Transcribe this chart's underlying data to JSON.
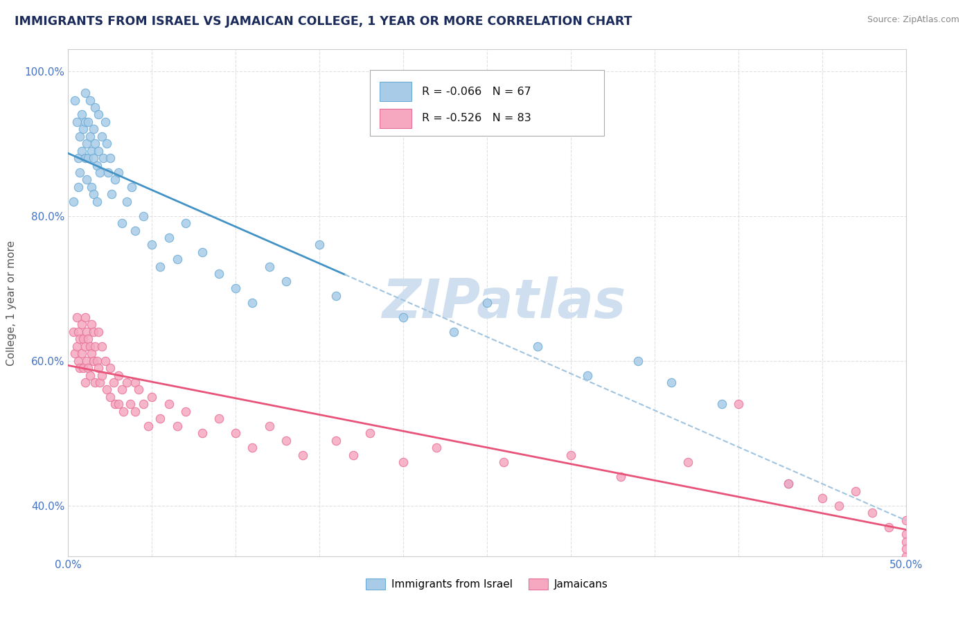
{
  "title": "IMMIGRANTS FROM ISRAEL VS JAMAICAN COLLEGE, 1 YEAR OR MORE CORRELATION CHART",
  "source_text": "Source: ZipAtlas.com",
  "ylabel": "College, 1 year or more",
  "xlim": [
    0.0,
    0.5
  ],
  "ylim": [
    0.33,
    1.03
  ],
  "xticks": [
    0.0,
    0.05,
    0.1,
    0.15,
    0.2,
    0.25,
    0.3,
    0.35,
    0.4,
    0.45,
    0.5
  ],
  "xticklabels": [
    "0.0%",
    "",
    "",
    "",
    "",
    "",
    "",
    "",
    "",
    "",
    "50.0%"
  ],
  "yticks": [
    0.4,
    0.6,
    0.8,
    1.0
  ],
  "yticklabels": [
    "40.0%",
    "60.0%",
    "80.0%",
    "100.0%"
  ],
  "legend_labels": [
    "Immigrants from Israel",
    "Jamaicans"
  ],
  "legend_R": [
    "R = -0.066",
    "R = -0.526"
  ],
  "legend_N": [
    "N = 67",
    "N = 83"
  ],
  "blue_line_color": "#4292c6",
  "blue_line_color_dashed": "#a0c4e0",
  "pink_line_color": "#e8537a",
  "blue_scatter_face": "#a8cce8",
  "blue_scatter_edge": "#6aaad4",
  "pink_scatter_face": "#f5a8c0",
  "pink_scatter_edge": "#e87098",
  "watermark": "ZIPatlas",
  "watermark_color": "#d0dff0",
  "blue_solid_xlim": [
    0.0,
    0.165
  ],
  "blue_dashed_xlim": [
    0.165,
    0.5
  ],
  "blue_points_x": [
    0.003,
    0.004,
    0.005,
    0.006,
    0.006,
    0.007,
    0.007,
    0.008,
    0.008,
    0.009,
    0.01,
    0.01,
    0.01,
    0.011,
    0.011,
    0.012,
    0.012,
    0.013,
    0.013,
    0.014,
    0.014,
    0.015,
    0.015,
    0.015,
    0.016,
    0.016,
    0.017,
    0.017,
    0.018,
    0.018,
    0.019,
    0.02,
    0.021,
    0.022,
    0.023,
    0.024,
    0.025,
    0.026,
    0.028,
    0.03,
    0.032,
    0.035,
    0.038,
    0.04,
    0.045,
    0.05,
    0.055,
    0.06,
    0.065,
    0.07,
    0.08,
    0.09,
    0.1,
    0.11,
    0.12,
    0.13,
    0.15,
    0.16,
    0.2,
    0.23,
    0.25,
    0.28,
    0.31,
    0.34,
    0.36,
    0.39,
    0.43
  ],
  "blue_points_y": [
    0.82,
    0.96,
    0.93,
    0.88,
    0.84,
    0.91,
    0.86,
    0.94,
    0.89,
    0.92,
    0.97,
    0.93,
    0.88,
    0.9,
    0.85,
    0.93,
    0.88,
    0.96,
    0.91,
    0.89,
    0.84,
    0.92,
    0.88,
    0.83,
    0.95,
    0.9,
    0.87,
    0.82,
    0.94,
    0.89,
    0.86,
    0.91,
    0.88,
    0.93,
    0.9,
    0.86,
    0.88,
    0.83,
    0.85,
    0.86,
    0.79,
    0.82,
    0.84,
    0.78,
    0.8,
    0.76,
    0.73,
    0.77,
    0.74,
    0.79,
    0.75,
    0.72,
    0.7,
    0.68,
    0.73,
    0.71,
    0.76,
    0.69,
    0.66,
    0.64,
    0.68,
    0.62,
    0.58,
    0.6,
    0.57,
    0.54,
    0.43
  ],
  "pink_points_x": [
    0.003,
    0.004,
    0.005,
    0.005,
    0.006,
    0.006,
    0.007,
    0.007,
    0.008,
    0.008,
    0.009,
    0.009,
    0.01,
    0.01,
    0.01,
    0.011,
    0.011,
    0.012,
    0.012,
    0.013,
    0.013,
    0.014,
    0.014,
    0.015,
    0.015,
    0.016,
    0.016,
    0.017,
    0.018,
    0.018,
    0.019,
    0.02,
    0.02,
    0.022,
    0.023,
    0.025,
    0.025,
    0.027,
    0.028,
    0.03,
    0.03,
    0.032,
    0.033,
    0.035,
    0.037,
    0.04,
    0.04,
    0.042,
    0.045,
    0.048,
    0.05,
    0.055,
    0.06,
    0.065,
    0.07,
    0.08,
    0.09,
    0.1,
    0.11,
    0.12,
    0.13,
    0.14,
    0.16,
    0.17,
    0.18,
    0.2,
    0.22,
    0.26,
    0.3,
    0.33,
    0.37,
    0.4,
    0.43,
    0.45,
    0.46,
    0.47,
    0.48,
    0.49,
    0.5,
    0.5,
    0.5,
    0.5,
    0.5
  ],
  "pink_points_y": [
    0.64,
    0.61,
    0.66,
    0.62,
    0.64,
    0.6,
    0.63,
    0.59,
    0.65,
    0.61,
    0.63,
    0.59,
    0.66,
    0.62,
    0.57,
    0.64,
    0.6,
    0.63,
    0.59,
    0.62,
    0.58,
    0.65,
    0.61,
    0.64,
    0.6,
    0.62,
    0.57,
    0.6,
    0.64,
    0.59,
    0.57,
    0.62,
    0.58,
    0.6,
    0.56,
    0.59,
    0.55,
    0.57,
    0.54,
    0.58,
    0.54,
    0.56,
    0.53,
    0.57,
    0.54,
    0.57,
    0.53,
    0.56,
    0.54,
    0.51,
    0.55,
    0.52,
    0.54,
    0.51,
    0.53,
    0.5,
    0.52,
    0.5,
    0.48,
    0.51,
    0.49,
    0.47,
    0.49,
    0.47,
    0.5,
    0.46,
    0.48,
    0.46,
    0.47,
    0.44,
    0.46,
    0.54,
    0.43,
    0.41,
    0.4,
    0.42,
    0.39,
    0.37,
    0.36,
    0.38,
    0.35,
    0.33,
    0.34
  ]
}
